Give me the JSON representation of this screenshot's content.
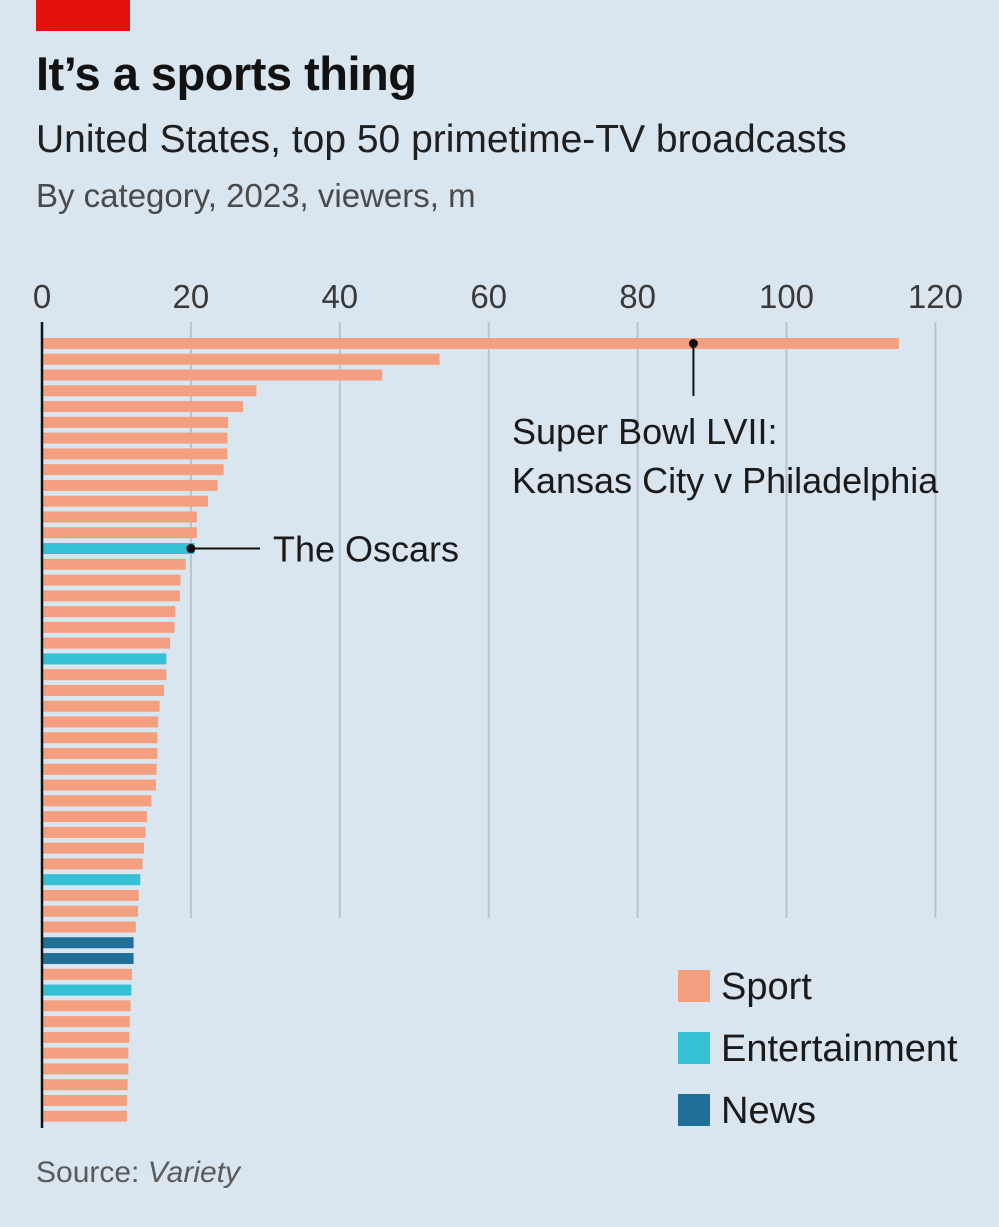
{
  "header": {
    "title": "It’s a sports thing",
    "subtitle": "United States, top 50 primetime-TV broadcasts",
    "description": "By category, 2023, viewers, m"
  },
  "footer": {
    "source_label": "Source: ",
    "source_name": "Variety"
  },
  "colors": {
    "background": "#d9e5ef",
    "accent_red": "#e3120b",
    "Sport": "#f4a080",
    "Entertainment": "#36c0d4",
    "News": "#1f6f99",
    "gridline": "#b8c3cc",
    "axis": "#111111"
  },
  "chart_data": {
    "type": "bar",
    "orientation": "horizontal",
    "title": "It’s a sports thing",
    "subtitle": "United States, top 50 primetime-TV broadcasts",
    "units": "viewers, m",
    "xlim": [
      0,
      120
    ],
    "xticks": [
      0,
      20,
      40,
      60,
      80,
      100,
      120
    ],
    "grid": true,
    "legend_position": "bottom-right",
    "legend": [
      "Sport",
      "Entertainment",
      "News"
    ],
    "bars": [
      {
        "value": 115.1,
        "category": "Sport"
      },
      {
        "value": 53.4,
        "category": "Sport"
      },
      {
        "value": 45.7,
        "category": "Sport"
      },
      {
        "value": 28.8,
        "category": "Sport"
      },
      {
        "value": 27.0,
        "category": "Sport"
      },
      {
        "value": 25.0,
        "category": "Sport"
      },
      {
        "value": 24.9,
        "category": "Sport"
      },
      {
        "value": 24.9,
        "category": "Sport"
      },
      {
        "value": 24.4,
        "category": "Sport"
      },
      {
        "value": 23.6,
        "category": "Sport"
      },
      {
        "value": 22.3,
        "category": "Sport"
      },
      {
        "value": 20.8,
        "category": "Sport"
      },
      {
        "value": 20.8,
        "category": "Sport"
      },
      {
        "value": 20.5,
        "category": "Entertainment"
      },
      {
        "value": 19.3,
        "category": "Sport"
      },
      {
        "value": 18.6,
        "category": "Sport"
      },
      {
        "value": 18.5,
        "category": "Sport"
      },
      {
        "value": 17.9,
        "category": "Sport"
      },
      {
        "value": 17.8,
        "category": "Sport"
      },
      {
        "value": 17.2,
        "category": "Sport"
      },
      {
        "value": 16.7,
        "category": "Entertainment"
      },
      {
        "value": 16.7,
        "category": "Sport"
      },
      {
        "value": 16.4,
        "category": "Sport"
      },
      {
        "value": 15.8,
        "category": "Sport"
      },
      {
        "value": 15.6,
        "category": "Sport"
      },
      {
        "value": 15.5,
        "category": "Sport"
      },
      {
        "value": 15.5,
        "category": "Sport"
      },
      {
        "value": 15.4,
        "category": "Sport"
      },
      {
        "value": 15.3,
        "category": "Sport"
      },
      {
        "value": 14.7,
        "category": "Sport"
      },
      {
        "value": 14.1,
        "category": "Sport"
      },
      {
        "value": 13.9,
        "category": "Sport"
      },
      {
        "value": 13.7,
        "category": "Sport"
      },
      {
        "value": 13.5,
        "category": "Sport"
      },
      {
        "value": 13.2,
        "category": "Entertainment"
      },
      {
        "value": 13.0,
        "category": "Sport"
      },
      {
        "value": 12.9,
        "category": "Sport"
      },
      {
        "value": 12.6,
        "category": "Sport"
      },
      {
        "value": 12.3,
        "category": "News"
      },
      {
        "value": 12.3,
        "category": "News"
      },
      {
        "value": 12.1,
        "category": "Sport"
      },
      {
        "value": 12.0,
        "category": "Entertainment"
      },
      {
        "value": 11.9,
        "category": "Sport"
      },
      {
        "value": 11.8,
        "category": "Sport"
      },
      {
        "value": 11.7,
        "category": "Sport"
      },
      {
        "value": 11.6,
        "category": "Sport"
      },
      {
        "value": 11.6,
        "category": "Sport"
      },
      {
        "value": 11.5,
        "category": "Sport"
      },
      {
        "value": 11.4,
        "category": "Sport"
      },
      {
        "value": 11.4,
        "category": "Sport"
      }
    ],
    "annotations": [
      {
        "bar_index": 0,
        "marker_value": 87.5,
        "lines": [
          "Super Bowl LVII:",
          "Kansas City v Philadelphia"
        ]
      },
      {
        "bar_index": 13,
        "marker_value": 20.0,
        "lines": [
          "The Oscars"
        ]
      }
    ]
  }
}
